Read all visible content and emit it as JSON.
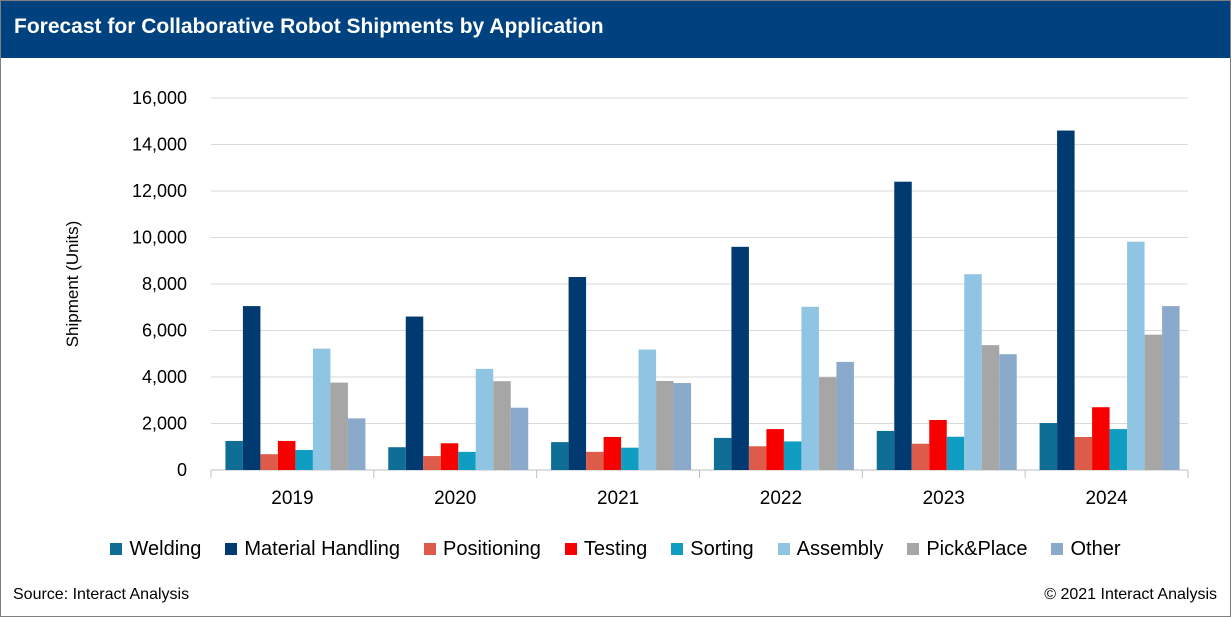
{
  "title": "Forecast for Collaborative Robot Shipments by Application",
  "source": "Source: Interact Analysis",
  "copyright": "© 2021 Interact Analysis",
  "chart_data": {
    "type": "bar",
    "title": "Forecast for Collaborative Robot Shipments by Application",
    "xlabel": "",
    "ylabel": "Shipment (Units)",
    "ylim": [
      0,
      16000
    ],
    "yticks": [
      0,
      2000,
      4000,
      6000,
      8000,
      10000,
      12000,
      14000,
      16000
    ],
    "ytick_labels": [
      "0",
      "2,000",
      "4,000",
      "6,000",
      "8,000",
      "10,000",
      "12,000",
      "14,000",
      "16,000"
    ],
    "grid": true,
    "legend_position": "bottom",
    "categories": [
      "2019",
      "2020",
      "2021",
      "2022",
      "2023",
      "2024"
    ],
    "series": [
      {
        "name": "Welding",
        "color": "#0f6e96",
        "values": [
          1250,
          980,
          1200,
          1380,
          1680,
          2020
        ]
      },
      {
        "name": "Material Handling",
        "color": "#003a70",
        "values": [
          7050,
          6600,
          8300,
          9600,
          12400,
          14600
        ]
      },
      {
        "name": "Positioning",
        "color": "#dd5b49",
        "values": [
          680,
          600,
          780,
          1020,
          1130,
          1420
        ]
      },
      {
        "name": "Testing",
        "color": "#f70000",
        "values": [
          1250,
          1150,
          1420,
          1760,
          2150,
          2700
        ]
      },
      {
        "name": "Sorting",
        "color": "#0f9ec2",
        "values": [
          860,
          780,
          960,
          1230,
          1430,
          1760
        ]
      },
      {
        "name": "Assembly",
        "color": "#8fc5e3",
        "values": [
          5220,
          4350,
          5180,
          7020,
          8420,
          9820
        ]
      },
      {
        "name": "Pick&Place",
        "color": "#a6a6a6",
        "values": [
          3760,
          3820,
          3830,
          3990,
          5370,
          5820
        ]
      },
      {
        "name": "Other",
        "color": "#8aa9cb",
        "values": [
          2220,
          2680,
          3740,
          4650,
          4980,
          7050
        ]
      }
    ]
  }
}
